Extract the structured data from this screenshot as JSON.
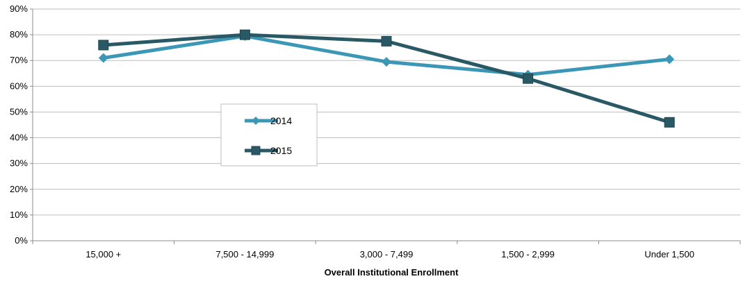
{
  "chart_data": {
    "type": "line",
    "categories": [
      "15,000 +",
      "7,500 - 14,999",
      "3,000 - 7,499",
      "1,500 - 2,999",
      "Under 1,500"
    ],
    "series": [
      {
        "name": "2014",
        "values": [
          71,
          79.5,
          69.5,
          64.5,
          70.5
        ],
        "color": "#3C96B6",
        "marker": "diamond"
      },
      {
        "name": "2015",
        "values": [
          76,
          80,
          77.5,
          63,
          46
        ],
        "color": "#2A5966",
        "marker": "square"
      }
    ],
    "title": "",
    "xlabel": "Overall Institutional Enrollment",
    "ylabel": "",
    "ylim": [
      0,
      90
    ],
    "yticks": [
      "0%",
      "10%",
      "20%",
      "30%",
      "40%",
      "50%",
      "60%",
      "70%",
      "80%",
      "90%"
    ],
    "grid": true,
    "legend_placement": "center-left"
  }
}
